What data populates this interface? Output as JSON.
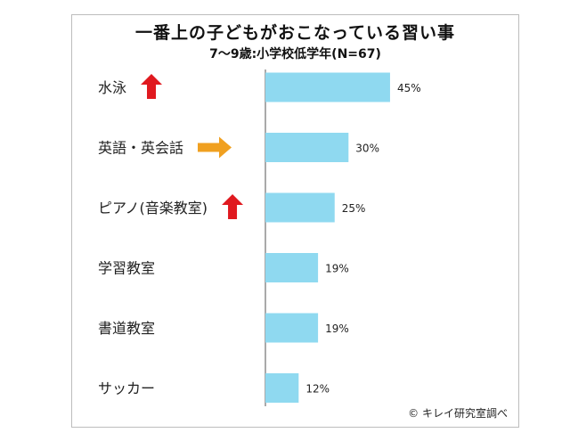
{
  "chart_data": {
    "type": "bar",
    "orientation": "horizontal",
    "title": "一番上の子どもがおこなっている習い事",
    "subtitle": "7〜9歳:小学校低学年(N=67)",
    "categories": [
      "水泳",
      "英語・英会話",
      "ピアノ(音楽教室)",
      "学習教室",
      "書道教室",
      "サッカー"
    ],
    "values": [
      45,
      30,
      25,
      19,
      19,
      12
    ],
    "value_labels": [
      "45%",
      "30%",
      "25%",
      "19%",
      "19%",
      "12%"
    ],
    "trend_icons": [
      "arrow-up-icon",
      "arrow-right-icon",
      "arrow-up-icon",
      "",
      "",
      ""
    ],
    "xlim": [
      0,
      100
    ],
    "grid": false,
    "legend": "none"
  },
  "colors": {
    "bar": "#8fd9f0",
    "axis": "#555555",
    "arrow_up": "#e0191f",
    "arrow_right": "#f0a020"
  },
  "credit": "© キレイ研究室調べ"
}
